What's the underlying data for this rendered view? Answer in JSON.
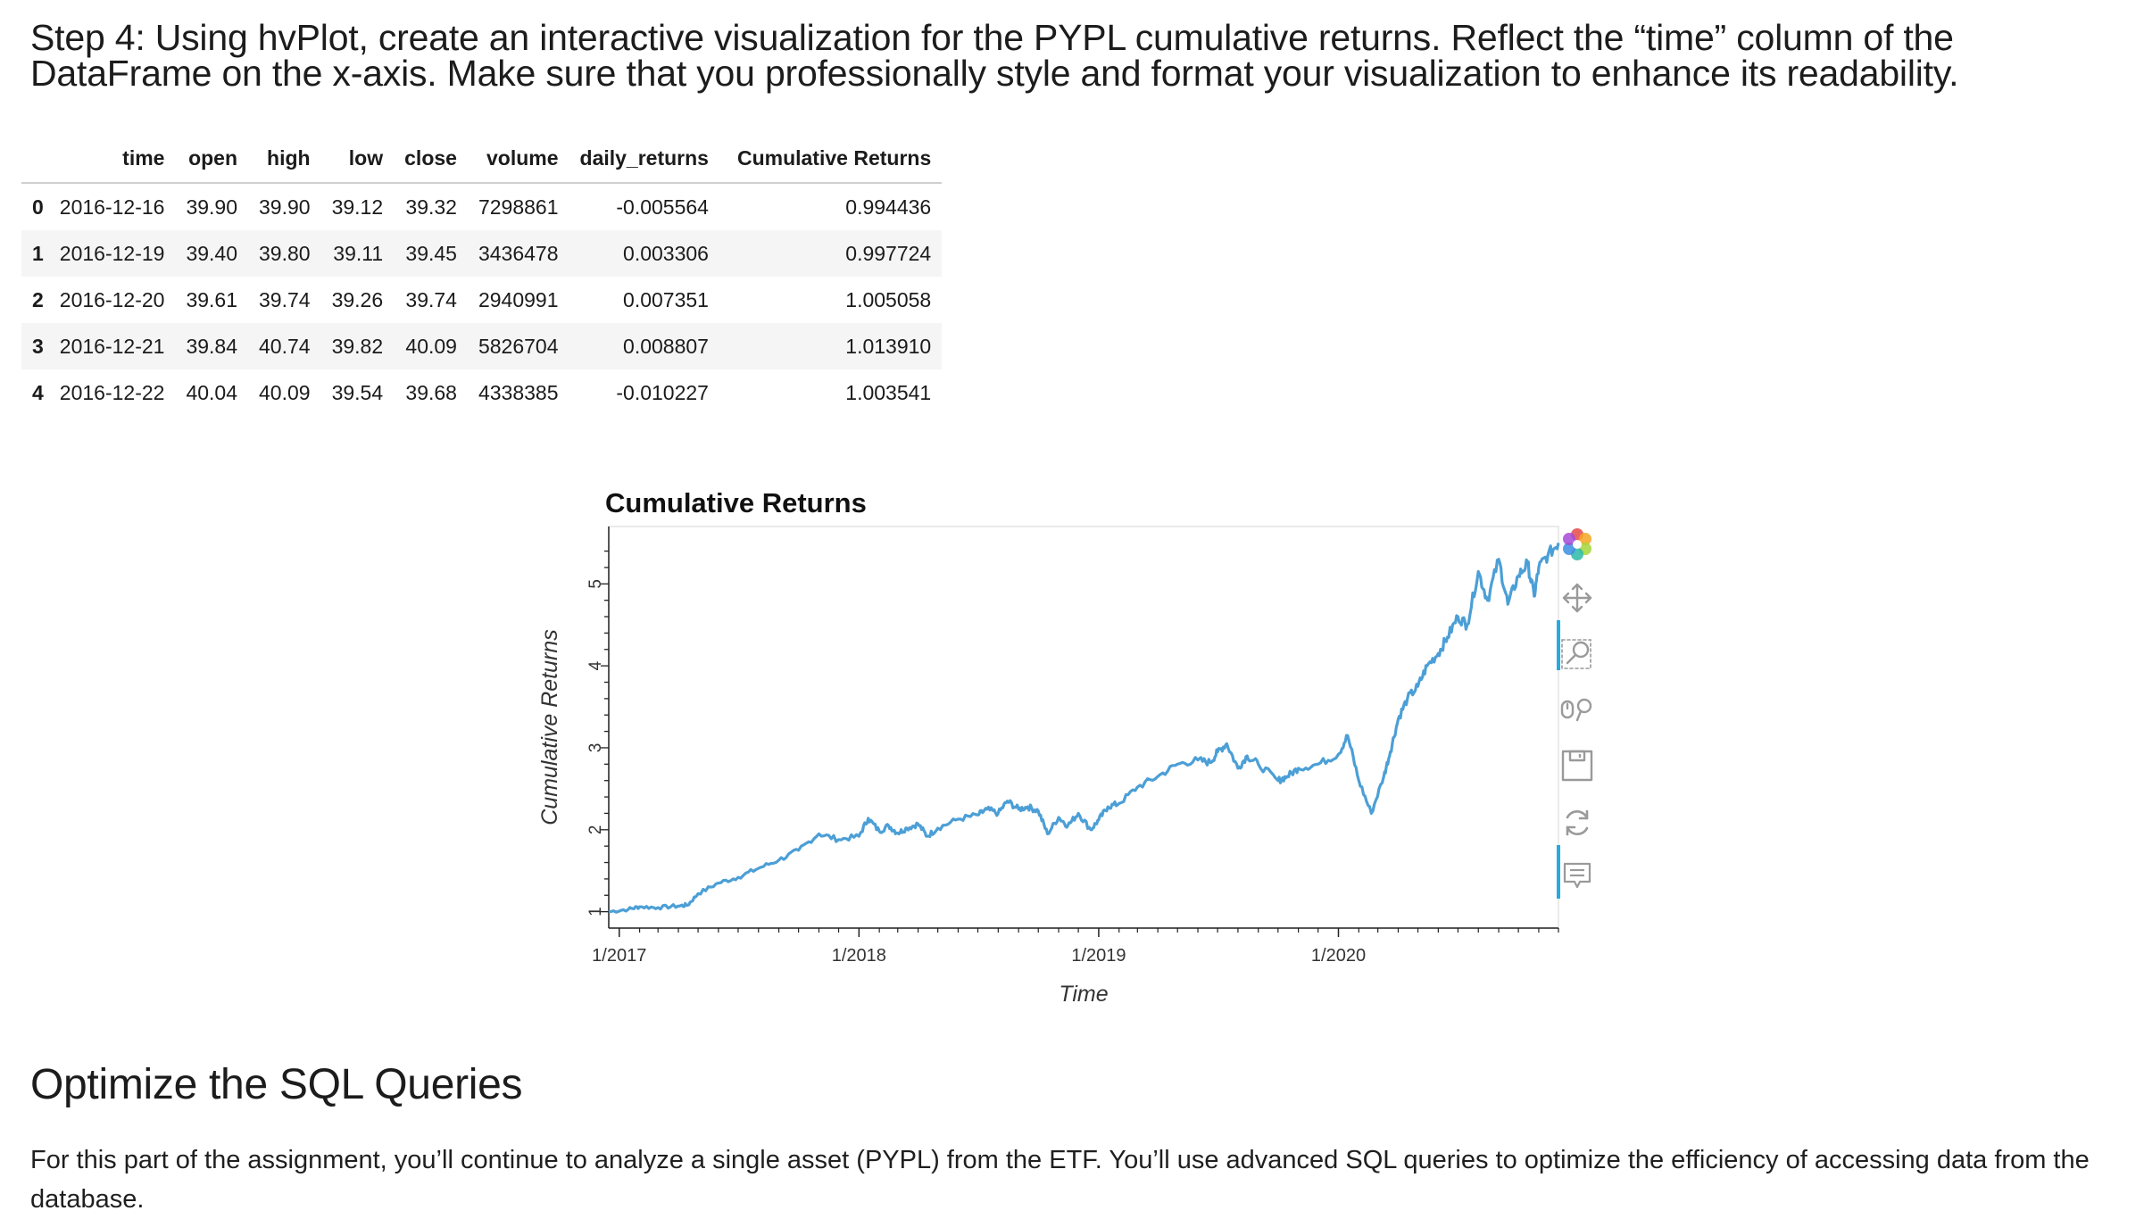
{
  "step_heading": "Step 4: Using hvPlot, create an interactive visualization for the PYPL cumulative returns. Reflect the “time” column of the DataFrame on the x-axis. Make sure that you professionally style and format your visualization to enhance its readability.",
  "dataframe": {
    "columns": [
      "",
      "time",
      "open",
      "high",
      "low",
      "close",
      "volume",
      "daily_returns",
      "Cumulative Returns"
    ],
    "rows": [
      [
        "0",
        "2016-12-16",
        "39.90",
        "39.90",
        "39.12",
        "39.32",
        "7298861",
        "-0.005564",
        "0.994436"
      ],
      [
        "1",
        "2016-12-19",
        "39.40",
        "39.80",
        "39.11",
        "39.45",
        "3436478",
        "0.003306",
        "0.997724"
      ],
      [
        "2",
        "2016-12-20",
        "39.61",
        "39.74",
        "39.26",
        "39.74",
        "2940991",
        "0.007351",
        "1.005058"
      ],
      [
        "3",
        "2016-12-21",
        "39.84",
        "40.74",
        "39.82",
        "40.09",
        "5826704",
        "0.008807",
        "1.013910"
      ],
      [
        "4",
        "2016-12-22",
        "40.04",
        "40.09",
        "39.54",
        "39.68",
        "4338385",
        "-0.010227",
        "1.003541"
      ]
    ]
  },
  "chart_data": {
    "type": "line",
    "title": "Cumulative Returns",
    "xlabel": "Time",
    "ylabel": "Cumulative Returns",
    "x_ticks": [
      "1/2017",
      "1/2018",
      "1/2019",
      "1/2020"
    ],
    "y_ticks": [
      "1",
      "2",
      "3",
      "4",
      "5"
    ],
    "xlim": [
      "2016-12-16",
      "2020-12-01"
    ],
    "ylim": [
      0.8,
      5.7
    ],
    "grid": false,
    "line_color": "#4c9fd6",
    "series": [
      {
        "x": [
          "2016-12-16",
          "2017-01-15",
          "2017-02-01",
          "2017-03-01",
          "2017-04-01",
          "2017-04-15",
          "2017-05-01",
          "2017-06-01",
          "2017-07-01",
          "2017-08-01",
          "2017-09-01",
          "2017-10-01",
          "2017-11-01",
          "2017-12-01",
          "2018-01-01",
          "2018-01-15",
          "2018-02-01",
          "2018-02-15",
          "2018-03-01",
          "2018-03-15",
          "2018-04-01",
          "2018-04-15",
          "2018-05-01",
          "2018-06-01",
          "2018-07-01",
          "2018-07-15",
          "2018-08-01",
          "2018-08-15",
          "2018-09-01",
          "2018-09-15",
          "2018-10-01",
          "2018-10-15",
          "2018-11-01",
          "2018-11-15",
          "2018-12-01",
          "2018-12-20",
          "2019-01-01",
          "2019-01-15",
          "2019-02-01",
          "2019-03-01",
          "2019-04-01",
          "2019-05-01",
          "2019-06-01",
          "2019-06-20",
          "2019-07-01",
          "2019-07-15",
          "2019-08-01",
          "2019-08-15",
          "2019-09-01",
          "2019-10-01",
          "2019-10-15",
          "2019-11-01",
          "2019-12-01",
          "2020-01-01",
          "2020-01-15",
          "2020-02-01",
          "2020-02-20",
          "2020-03-10",
          "2020-03-20",
          "2020-04-01",
          "2020-04-15",
          "2020-05-01",
          "2020-05-15",
          "2020-06-01",
          "2020-06-15",
          "2020-07-01",
          "2020-07-15",
          "2020-08-01",
          "2020-08-15",
          "2020-09-01",
          "2020-09-15",
          "2020-10-01",
          "2020-10-15",
          "2020-10-25",
          "2020-11-01",
          "2020-11-15",
          "2020-12-01"
        ],
        "y": [
          1.0,
          1.03,
          1.06,
          1.05,
          1.07,
          1.08,
          1.22,
          1.35,
          1.42,
          1.53,
          1.63,
          1.75,
          1.95,
          1.88,
          1.92,
          2.14,
          1.98,
          2.05,
          1.96,
          2.02,
          2.07,
          1.92,
          2.02,
          2.13,
          2.18,
          2.25,
          2.2,
          2.35,
          2.25,
          2.28,
          2.23,
          1.95,
          2.15,
          2.05,
          2.2,
          2.0,
          2.12,
          2.28,
          2.32,
          2.52,
          2.65,
          2.8,
          2.85,
          2.82,
          2.95,
          3.05,
          2.75,
          2.9,
          2.8,
          2.6,
          2.65,
          2.75,
          2.8,
          2.92,
          3.15,
          2.6,
          2.2,
          2.65,
          2.95,
          3.35,
          3.6,
          3.75,
          4.0,
          4.15,
          4.35,
          4.6,
          4.5,
          5.15,
          4.8,
          5.3,
          4.75,
          5.1,
          5.25,
          4.85,
          5.2,
          5.35,
          5.5
        ]
      }
    ]
  },
  "toolbar": {
    "icons": [
      "bokeh-logo-icon",
      "pan-icon",
      "box-zoom-icon",
      "wheel-zoom-icon",
      "save-icon",
      "reset-icon",
      "hover-icon"
    ]
  },
  "section": {
    "title": "Optimize the SQL Queries",
    "paragraph": "For this part of the assignment, you’ll continue to analyze a single asset (PYPL) from the ETF. You’ll use advanced SQL queries to optimize the efficiency of accessing data from the database."
  }
}
